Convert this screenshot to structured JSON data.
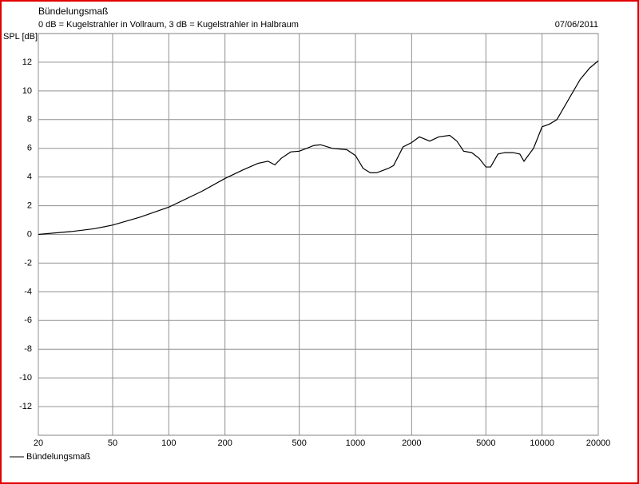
{
  "chart_data": {
    "type": "line",
    "title": "Bündelungsmaß",
    "subtitle": "0 dB = Kugelstrahler in Vollraum, 3 dB = Kugelstrahler in Halbraum",
    "date": "07/06/2011",
    "y_label": "SPL [dB]",
    "x_scale": "log",
    "grid": true,
    "legend": "bottom-left",
    "x": [
      20,
      30,
      40,
      50,
      70,
      100,
      150,
      200,
      250,
      300,
      340,
      370,
      400,
      450,
      500,
      600,
      650,
      750,
      900,
      1000,
      1100,
      1200,
      1300,
      1500,
      1600,
      1800,
      2000,
      2200,
      2500,
      2800,
      3200,
      3500,
      3800,
      4200,
      4600,
      5000,
      5300,
      5800,
      6300,
      7000,
      7600,
      8000,
      9000,
      10000,
      11000,
      12000,
      14000,
      16000,
      18000,
      20000
    ],
    "series": [
      {
        "name": "Bündelungsmaß",
        "color": "#000000",
        "values": [
          0,
          0.2,
          0.4,
          0.65,
          1.2,
          1.9,
          3.0,
          3.9,
          4.5,
          4.95,
          5.1,
          4.85,
          5.3,
          5.75,
          5.8,
          6.2,
          6.25,
          6.0,
          5.9,
          5.5,
          4.6,
          4.3,
          4.3,
          4.6,
          4.8,
          6.1,
          6.4,
          6.8,
          6.5,
          6.8,
          6.9,
          6.5,
          5.8,
          5.7,
          5.3,
          4.7,
          4.7,
          5.6,
          5.7,
          5.7,
          5.6,
          5.1,
          6.0,
          7.5,
          7.7,
          8.0,
          9.5,
          10.8,
          11.6,
          12.1
        ]
      }
    ],
    "xlim": [
      20,
      20000
    ],
    "xticks": [
      20,
      50,
      100,
      200,
      500,
      1000,
      2000,
      5000,
      10000,
      20000
    ],
    "ylim": [
      -14,
      14
    ],
    "yticks": [
      -12,
      -10,
      -8,
      -6,
      -4,
      -2,
      0,
      2,
      4,
      6,
      8,
      10,
      12
    ]
  }
}
